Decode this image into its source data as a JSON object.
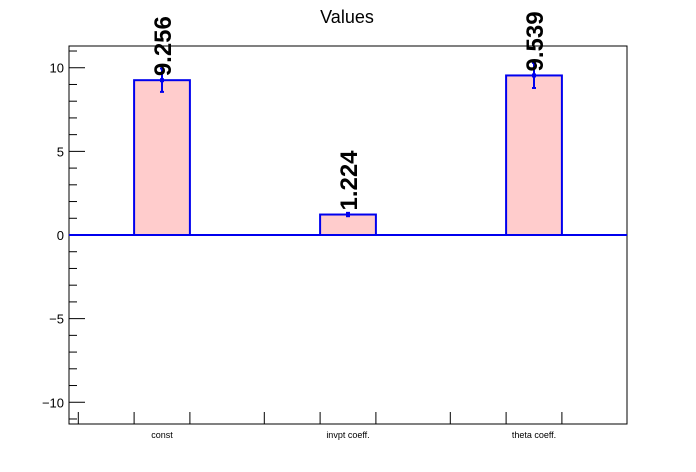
{
  "chart_data": {
    "type": "bar",
    "title": "Values",
    "categories": [
      "const",
      "invpt coeff.",
      "theta coeff."
    ],
    "values": [
      9.256,
      1.224,
      9.539
    ],
    "errors": [
      0.7,
      0.1,
      0.75
    ],
    "data_labels": [
      "9.256",
      "1.224",
      "9.539"
    ],
    "ylim": [
      -11.3,
      11.3
    ],
    "yticks": [
      -10,
      -5,
      0,
      5,
      10
    ],
    "ytick_labels": [
      "−10",
      "−5",
      "0",
      "5",
      "10"
    ],
    "grid": false,
    "colors": {
      "bar_fill": "#ffcccc",
      "bar_edge": "#0000ee",
      "axis": "#000000",
      "zero_line": "#0000ee"
    }
  }
}
